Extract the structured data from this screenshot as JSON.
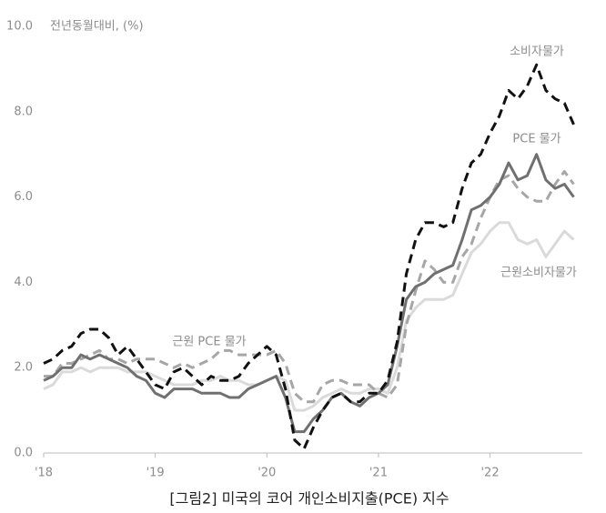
{
  "chart_data": {
    "type": "line",
    "title": "[그림2] 미국의 코어 개인소비지출(PCE) 지수",
    "y_label": "전년동월대비, (%)",
    "categories": [
      "'18",
      null,
      null,
      null,
      null,
      null,
      null,
      null,
      null,
      null,
      null,
      null,
      "'19",
      null,
      null,
      null,
      null,
      null,
      null,
      null,
      null,
      null,
      null,
      null,
      "'20",
      null,
      null,
      null,
      null,
      null,
      null,
      null,
      null,
      null,
      null,
      null,
      "'21",
      null,
      null,
      null,
      null,
      null,
      null,
      null,
      null,
      null,
      null,
      null,
      "'22",
      null,
      null,
      null,
      null,
      null,
      null,
      null,
      null,
      null
    ],
    "series": [
      {
        "name": "소비자물가",
        "color": "#111111",
        "dash": true,
        "values": [
          2.1,
          2.2,
          2.4,
          2.5,
          2.8,
          2.9,
          2.9,
          2.7,
          2.3,
          2.5,
          2.2,
          1.9,
          1.6,
          1.5,
          1.9,
          2.0,
          1.8,
          1.6,
          1.8,
          1.7,
          1.7,
          1.8,
          2.1,
          2.3,
          2.5,
          2.3,
          1.5,
          0.3,
          0.1,
          0.6,
          1.0,
          1.3,
          1.4,
          1.2,
          1.2,
          1.4,
          1.4,
          1.7,
          2.6,
          4.2,
          5.0,
          5.4,
          5.4,
          5.3,
          5.4,
          6.2,
          6.8,
          7.0,
          7.5,
          7.9,
          8.5,
          8.3,
          8.6,
          9.1,
          8.5,
          8.3,
          8.2,
          7.7
        ]
      },
      {
        "name": "PCE 물가",
        "color": "#707070",
        "dash": false,
        "values": [
          1.7,
          1.8,
          2.0,
          2.0,
          2.3,
          2.2,
          2.3,
          2.2,
          2.1,
          2.0,
          1.8,
          1.7,
          1.4,
          1.3,
          1.5,
          1.5,
          1.5,
          1.4,
          1.4,
          1.4,
          1.3,
          1.3,
          1.5,
          1.6,
          1.7,
          1.8,
          1.3,
          0.5,
          0.5,
          0.8,
          1.0,
          1.3,
          1.4,
          1.2,
          1.1,
          1.3,
          1.4,
          1.6,
          2.5,
          3.6,
          3.9,
          4.0,
          4.2,
          4.3,
          4.4,
          5.0,
          5.7,
          5.8,
          6.0,
          6.3,
          6.8,
          6.4,
          6.5,
          7.0,
          6.4,
          6.2,
          6.3,
          6.0
        ]
      },
      {
        "name": "근원 PCE 물가",
        "color": "#a6a6a6",
        "dash": true,
        "values": [
          1.8,
          1.8,
          2.1,
          2.1,
          2.2,
          2.3,
          2.4,
          2.2,
          2.2,
          2.1,
          2.2,
          2.2,
          2.2,
          2.1,
          2.0,
          2.1,
          2.0,
          2.1,
          2.2,
          2.4,
          2.4,
          2.3,
          2.3,
          2.3,
          2.3,
          2.4,
          2.1,
          1.4,
          1.2,
          1.2,
          1.6,
          1.7,
          1.7,
          1.6,
          1.6,
          1.6,
          1.4,
          1.3,
          1.6,
          3.0,
          3.8,
          4.5,
          4.3,
          4.0,
          4.0,
          4.6,
          4.9,
          5.5,
          6.0,
          6.4,
          6.5,
          6.2,
          6.0,
          5.9,
          5.9,
          6.3,
          6.6,
          6.3
        ]
      },
      {
        "name": "근원소비자물가",
        "color": "#dadada",
        "dash": false,
        "values": [
          1.5,
          1.6,
          1.9,
          1.9,
          2.0,
          1.9,
          2.0,
          2.0,
          2.0,
          1.9,
          1.9,
          1.9,
          1.8,
          1.7,
          1.6,
          1.6,
          1.6,
          1.7,
          1.7,
          1.8,
          1.7,
          1.7,
          1.6,
          1.6,
          1.7,
          1.8,
          1.7,
          1.0,
          1.0,
          1.1,
          1.3,
          1.4,
          1.5,
          1.4,
          1.4,
          1.5,
          1.5,
          1.4,
          2.0,
          3.1,
          3.4,
          3.6,
          3.6,
          3.6,
          3.7,
          4.2,
          4.7,
          4.9,
          5.2,
          5.4,
          5.4,
          5.0,
          4.9,
          5.0,
          4.6,
          4.9,
          5.2,
          5.0
        ]
      }
    ],
    "ylim": [
      0,
      10
    ],
    "yticks": [
      {
        "value": 0,
        "label": "0.0"
      },
      {
        "value": 2,
        "label": "2.0"
      },
      {
        "value": 4,
        "label": "4.0"
      },
      {
        "value": 6,
        "label": "6.0"
      },
      {
        "value": 8,
        "label": "8.0"
      },
      {
        "value": 10,
        "label": "10.0"
      }
    ],
    "grid": false
  }
}
